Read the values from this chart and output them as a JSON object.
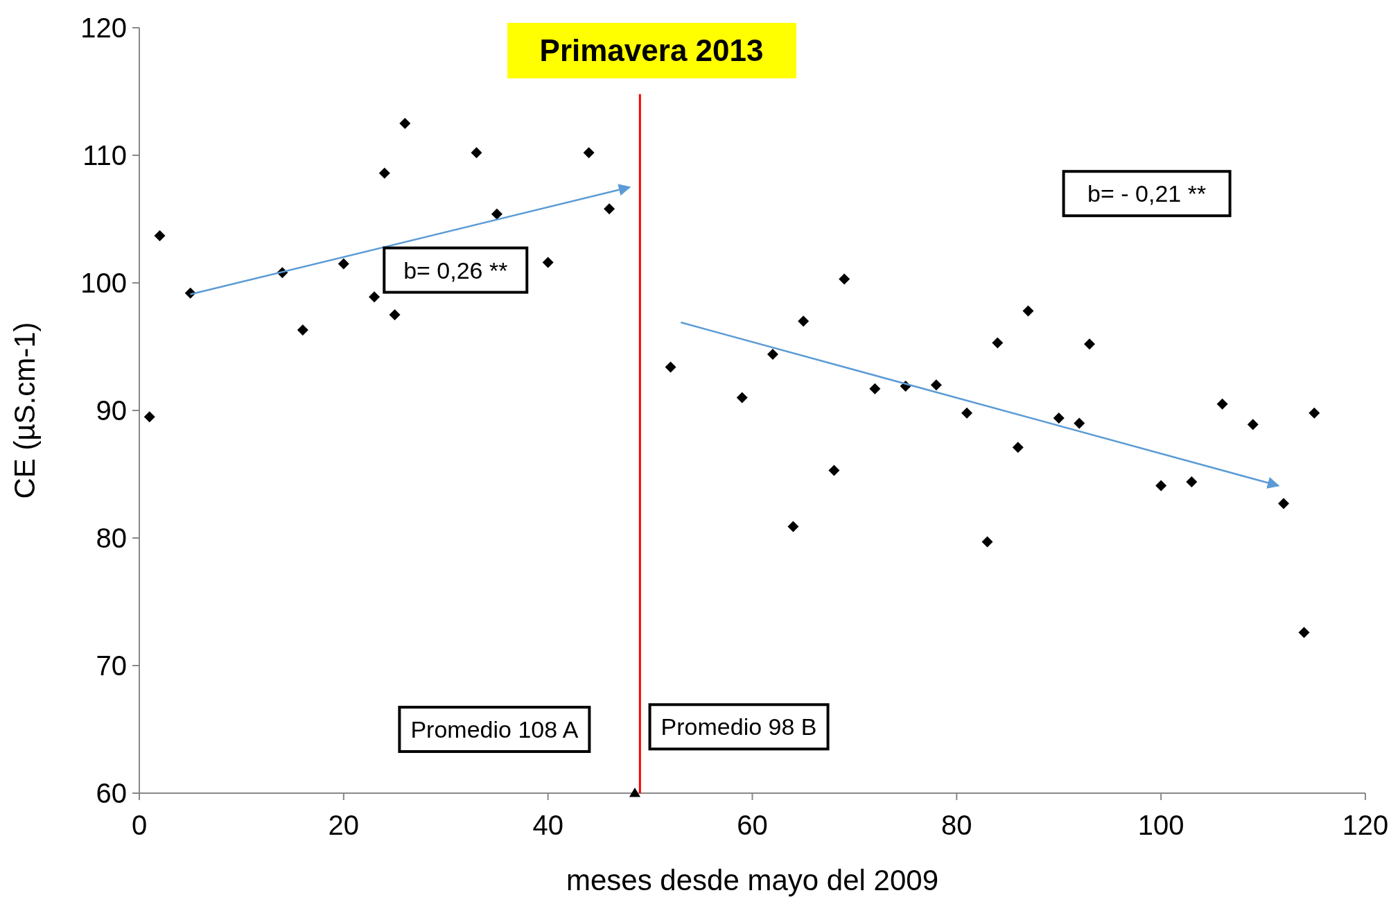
{
  "chart_data": {
    "type": "scatter",
    "title": "Primavera 2013",
    "xlabel": "meses desde mayo del 2009",
    "ylabel": "CE (µS.cm-1)",
    "xlim": [
      0,
      120
    ],
    "xticks": [
      0,
      20,
      40,
      60,
      80,
      100,
      120
    ],
    "ylim": [
      60,
      120
    ],
    "yticks": [
      60,
      70,
      80,
      90,
      100,
      110,
      120
    ],
    "grid": false,
    "marker": "diamond",
    "series": [
      {
        "color": "#000000",
        "x": [
          1,
          2,
          5,
          14,
          16,
          20,
          23,
          24,
          25,
          26,
          33,
          35,
          40,
          44,
          46,
          52,
          59,
          62,
          64,
          65,
          68,
          69,
          72,
          75,
          78,
          81,
          83,
          84,
          86,
          87,
          90,
          92,
          93,
          100,
          103,
          106,
          109,
          112,
          114,
          115
        ],
        "values": [
          89.5,
          103.7,
          99.2,
          100.8,
          96.3,
          101.5,
          98.9,
          108.6,
          97.5,
          112.5,
          110.2,
          105.4,
          101.6,
          110.2,
          105.8,
          93.4,
          91,
          94.4,
          80.9,
          97,
          85.3,
          100.3,
          91.7,
          91.9,
          92,
          89.8,
          79.7,
          95.3,
          87.1,
          97.8,
          89.4,
          89,
          95.2,
          84.1,
          84.4,
          90.5,
          88.9,
          82.7,
          72.6,
          89.8
        ]
      },
      {
        "type": "line",
        "color": "#5b9bd5",
        "marker": "none",
        "x": [
          5,
          48
        ],
        "values": [
          99.1,
          107.5
        ]
      },
      {
        "type": "line",
        "color": "#5b9bd5",
        "marker": "none",
        "x": [
          53,
          111.5
        ],
        "values": [
          96.9,
          84.1
        ]
      },
      {
        "color": "#000000",
        "marker": "triangle",
        "x": [
          48.5
        ],
        "values": [
          60
        ]
      }
    ],
    "ref_lines": [
      {
        "axis": "x",
        "value": 49,
        "color": "#ff0000"
      }
    ],
    "annotations": [
      "b= 0,26 **",
      "b= - 0,21 **",
      "Promedio 108 A",
      "Promedio 98 B"
    ]
  }
}
